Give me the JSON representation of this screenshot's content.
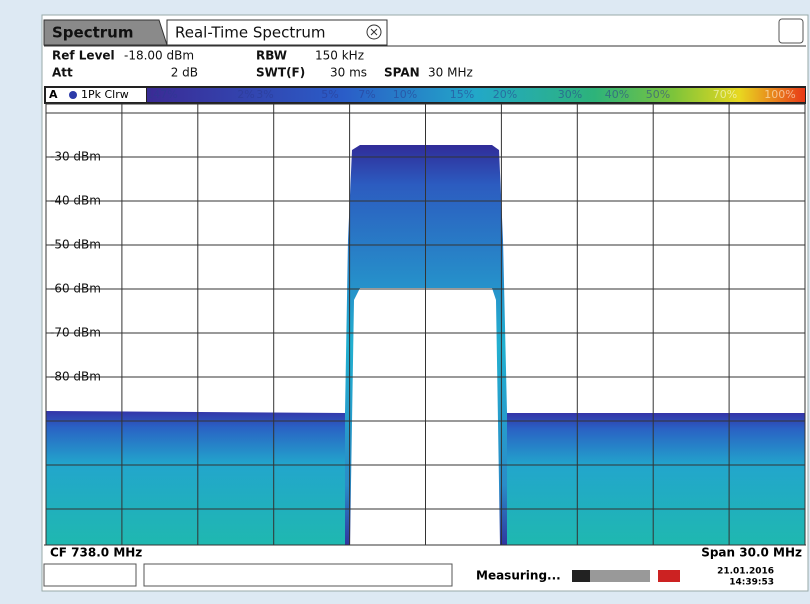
{
  "tabs": [
    "Spectrum",
    "Real-Time Spectrum"
  ],
  "settings": {
    "ref_level_label": "Ref Level",
    "ref_level": "-18.00 dBm",
    "att_label": "Att",
    "att": "2 dB",
    "rbw_label": "RBW",
    "rbw": "150 kHz",
    "swt_label": "SWT(F)",
    "swt": "30 ms",
    "span_label": "SPAN",
    "span": "30 MHz"
  },
  "trace": {
    "window": "A",
    "name": "1Pk Clrw"
  },
  "colorbar": [
    "147%",
    "2%",
    "3%",
    "5%",
    "7%",
    "10%",
    "15%",
    "20%",
    "30%",
    "40%",
    "50%",
    "70%",
    "100%"
  ],
  "y_labels": [
    "-30 dBm",
    "-40 dBm",
    "-50 dBm",
    "-60 dBm",
    "-70 dBm",
    "-80 dBm"
  ],
  "footer": {
    "center": "CF 738.0 MHz",
    "span": "Span 30.0 MHz"
  },
  "status": {
    "state": "Measuring...",
    "date": "21.01.2016",
    "time": "14:39:53"
  }
}
